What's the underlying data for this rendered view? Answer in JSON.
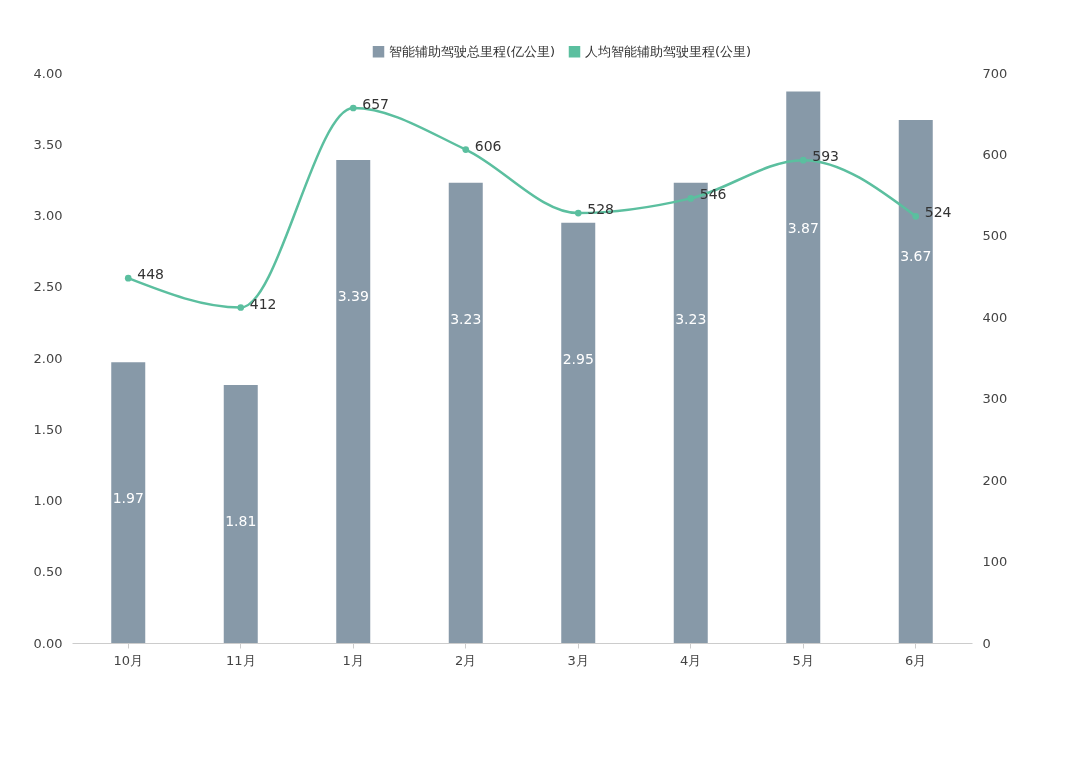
{
  "chart_data": {
    "type": "bar",
    "categories": [
      "10月",
      "11月",
      "1月",
      "2月",
      "3月",
      "4月",
      "5月",
      "6月"
    ],
    "series": [
      {
        "name": "智能辅助驾驶总里程(亿公里)",
        "color": "#8799a8",
        "values": [
          1.97,
          1.81,
          3.39,
          3.23,
          2.95,
          3.23,
          3.87,
          3.67
        ]
      },
      {
        "name": "人均智能辅助驾驶里程(公里)",
        "type": "line",
        "axis": "y2",
        "color": "#5bbf9f",
        "values": [
          448,
          412,
          657,
          606,
          528,
          546,
          593,
          524
        ]
      }
    ],
    "ylim": [
      0,
      4
    ],
    "yticks": [
      {
        "value": 0,
        "label": "0.00"
      },
      {
        "value": 0.5,
        "label": "0.50"
      },
      {
        "value": 1,
        "label": "1.00"
      },
      {
        "value": 1.5,
        "label": "1.50"
      },
      {
        "value": 2,
        "label": "2.00"
      },
      {
        "value": 2.5,
        "label": "2.50"
      },
      {
        "value": 3,
        "label": "3.00"
      },
      {
        "value": 3.5,
        "label": "3.50"
      },
      {
        "value": 4,
        "label": "4.00"
      }
    ],
    "y2lim": [
      0,
      700
    ],
    "y2ticks": [
      0,
      100,
      200,
      300,
      400,
      500,
      600,
      700
    ],
    "legend": "top",
    "marker": "circle",
    "data_labels": true
  }
}
